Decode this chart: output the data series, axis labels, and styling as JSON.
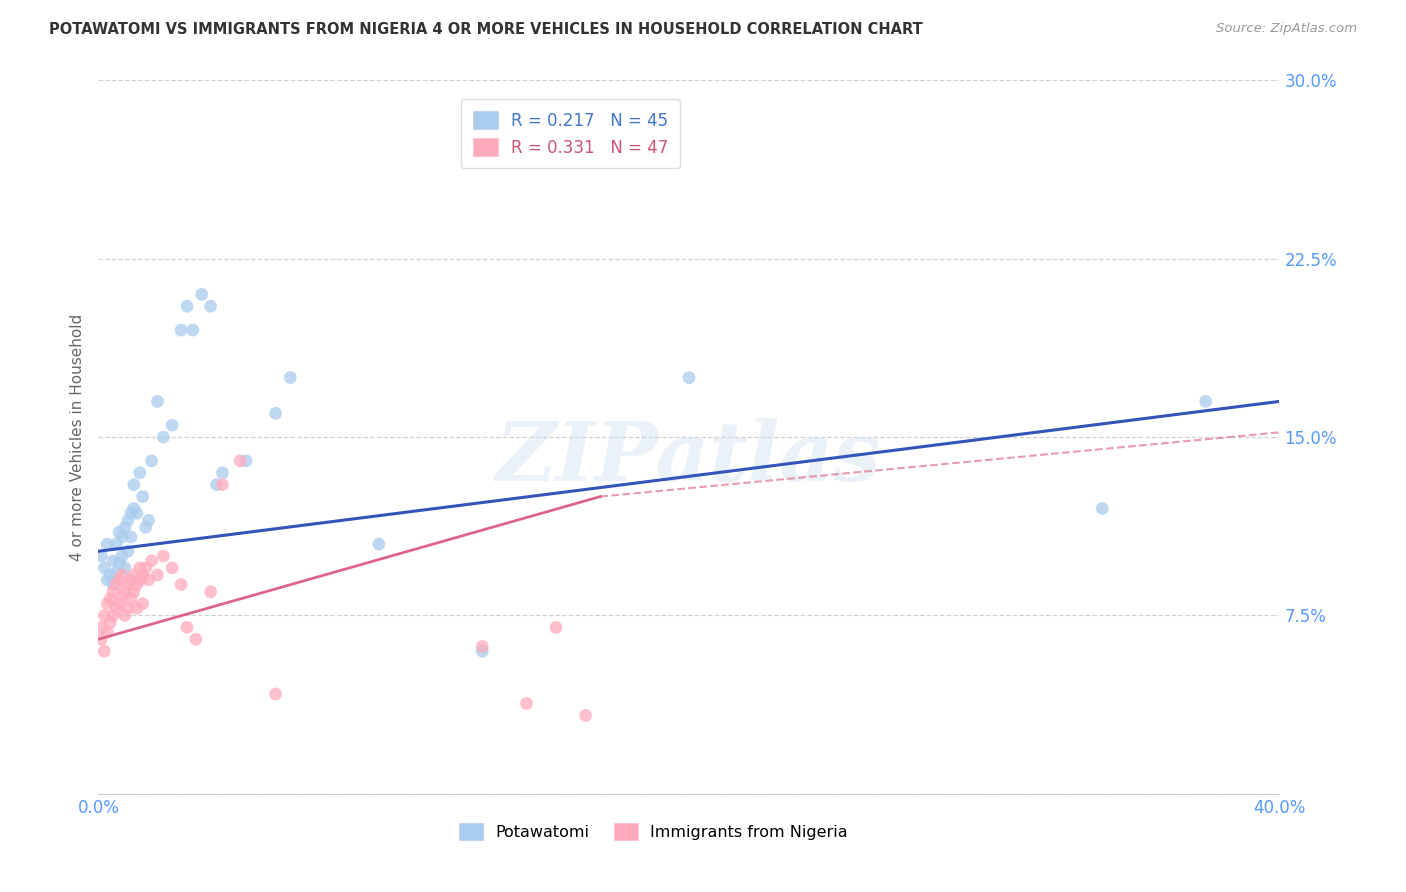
{
  "title": "POTAWATOMI VS IMMIGRANTS FROM NIGERIA 4 OR MORE VEHICLES IN HOUSEHOLD CORRELATION CHART",
  "source": "Source: ZipAtlas.com",
  "ylabel": "4 or more Vehicles in Household",
  "xlim": [
    0.0,
    0.4
  ],
  "ylim": [
    0.0,
    0.3
  ],
  "xtick_vals": [
    0.0,
    0.1,
    0.2,
    0.3,
    0.4
  ],
  "xticklabels": [
    "0.0%",
    "",
    "",
    "",
    "40.0%"
  ],
  "ytick_vals": [
    0.0,
    0.075,
    0.15,
    0.225,
    0.3
  ],
  "yticklabels": [
    "",
    "7.5%",
    "15.0%",
    "22.5%",
    "30.0%"
  ],
  "background_color": "#ffffff",
  "grid_color": "#cccccc",
  "blue_scatter_color": "#aaccee",
  "pink_scatter_color": "#ffaabb",
  "blue_line_color": "#3355bb",
  "pink_line_color": "#dd6688",
  "tick_color": "#5599ff",
  "ylabel_color": "#666666",
  "title_color": "#333333",
  "source_color": "#999999",
  "legend_color_blue": "#4477cc",
  "legend_color_pink": "#cc5577",
  "blue_line_x0": 0.0,
  "blue_line_y0": 0.102,
  "blue_line_x1": 0.4,
  "blue_line_y1": 0.165,
  "pink_line_x0": 0.0,
  "pink_line_y0": 0.065,
  "pink_line_solid_x1": 0.17,
  "pink_line_solid_y1": 0.125,
  "pink_line_dash_x1": 0.4,
  "pink_line_dash_y1": 0.152,
  "potawatomi_x": [
    0.001,
    0.002,
    0.003,
    0.003,
    0.004,
    0.005,
    0.005,
    0.006,
    0.006,
    0.007,
    0.007,
    0.008,
    0.008,
    0.009,
    0.009,
    0.01,
    0.01,
    0.011,
    0.011,
    0.012,
    0.012,
    0.013,
    0.014,
    0.015,
    0.016,
    0.017,
    0.018,
    0.02,
    0.022,
    0.025,
    0.028,
    0.03,
    0.032,
    0.035,
    0.038,
    0.04,
    0.042,
    0.05,
    0.06,
    0.065,
    0.095,
    0.13,
    0.2,
    0.34,
    0.375
  ],
  "potawatomi_y": [
    0.1,
    0.095,
    0.09,
    0.105,
    0.092,
    0.088,
    0.098,
    0.093,
    0.105,
    0.097,
    0.11,
    0.1,
    0.108,
    0.095,
    0.112,
    0.102,
    0.115,
    0.118,
    0.108,
    0.12,
    0.13,
    0.118,
    0.135,
    0.125,
    0.112,
    0.115,
    0.14,
    0.165,
    0.15,
    0.155,
    0.195,
    0.205,
    0.195,
    0.21,
    0.205,
    0.13,
    0.135,
    0.14,
    0.16,
    0.175,
    0.105,
    0.06,
    0.175,
    0.12,
    0.165
  ],
  "nigeria_x": [
    0.001,
    0.001,
    0.002,
    0.002,
    0.003,
    0.003,
    0.004,
    0.004,
    0.005,
    0.005,
    0.006,
    0.006,
    0.007,
    0.007,
    0.008,
    0.008,
    0.009,
    0.009,
    0.01,
    0.01,
    0.011,
    0.011,
    0.012,
    0.012,
    0.013,
    0.013,
    0.014,
    0.014,
    0.015,
    0.015,
    0.016,
    0.017,
    0.018,
    0.02,
    0.022,
    0.025,
    0.028,
    0.03,
    0.033,
    0.038,
    0.042,
    0.048,
    0.06,
    0.13,
    0.145,
    0.155,
    0.165
  ],
  "nigeria_y": [
    0.065,
    0.07,
    0.06,
    0.075,
    0.068,
    0.08,
    0.072,
    0.082,
    0.075,
    0.085,
    0.078,
    0.088,
    0.08,
    0.09,
    0.083,
    0.092,
    0.085,
    0.075,
    0.088,
    0.078,
    0.09,
    0.082,
    0.092,
    0.085,
    0.088,
    0.078,
    0.09,
    0.095,
    0.092,
    0.08,
    0.095,
    0.09,
    0.098,
    0.092,
    0.1,
    0.095,
    0.088,
    0.07,
    0.065,
    0.085,
    0.13,
    0.14,
    0.042,
    0.062,
    0.038,
    0.07,
    0.033
  ]
}
